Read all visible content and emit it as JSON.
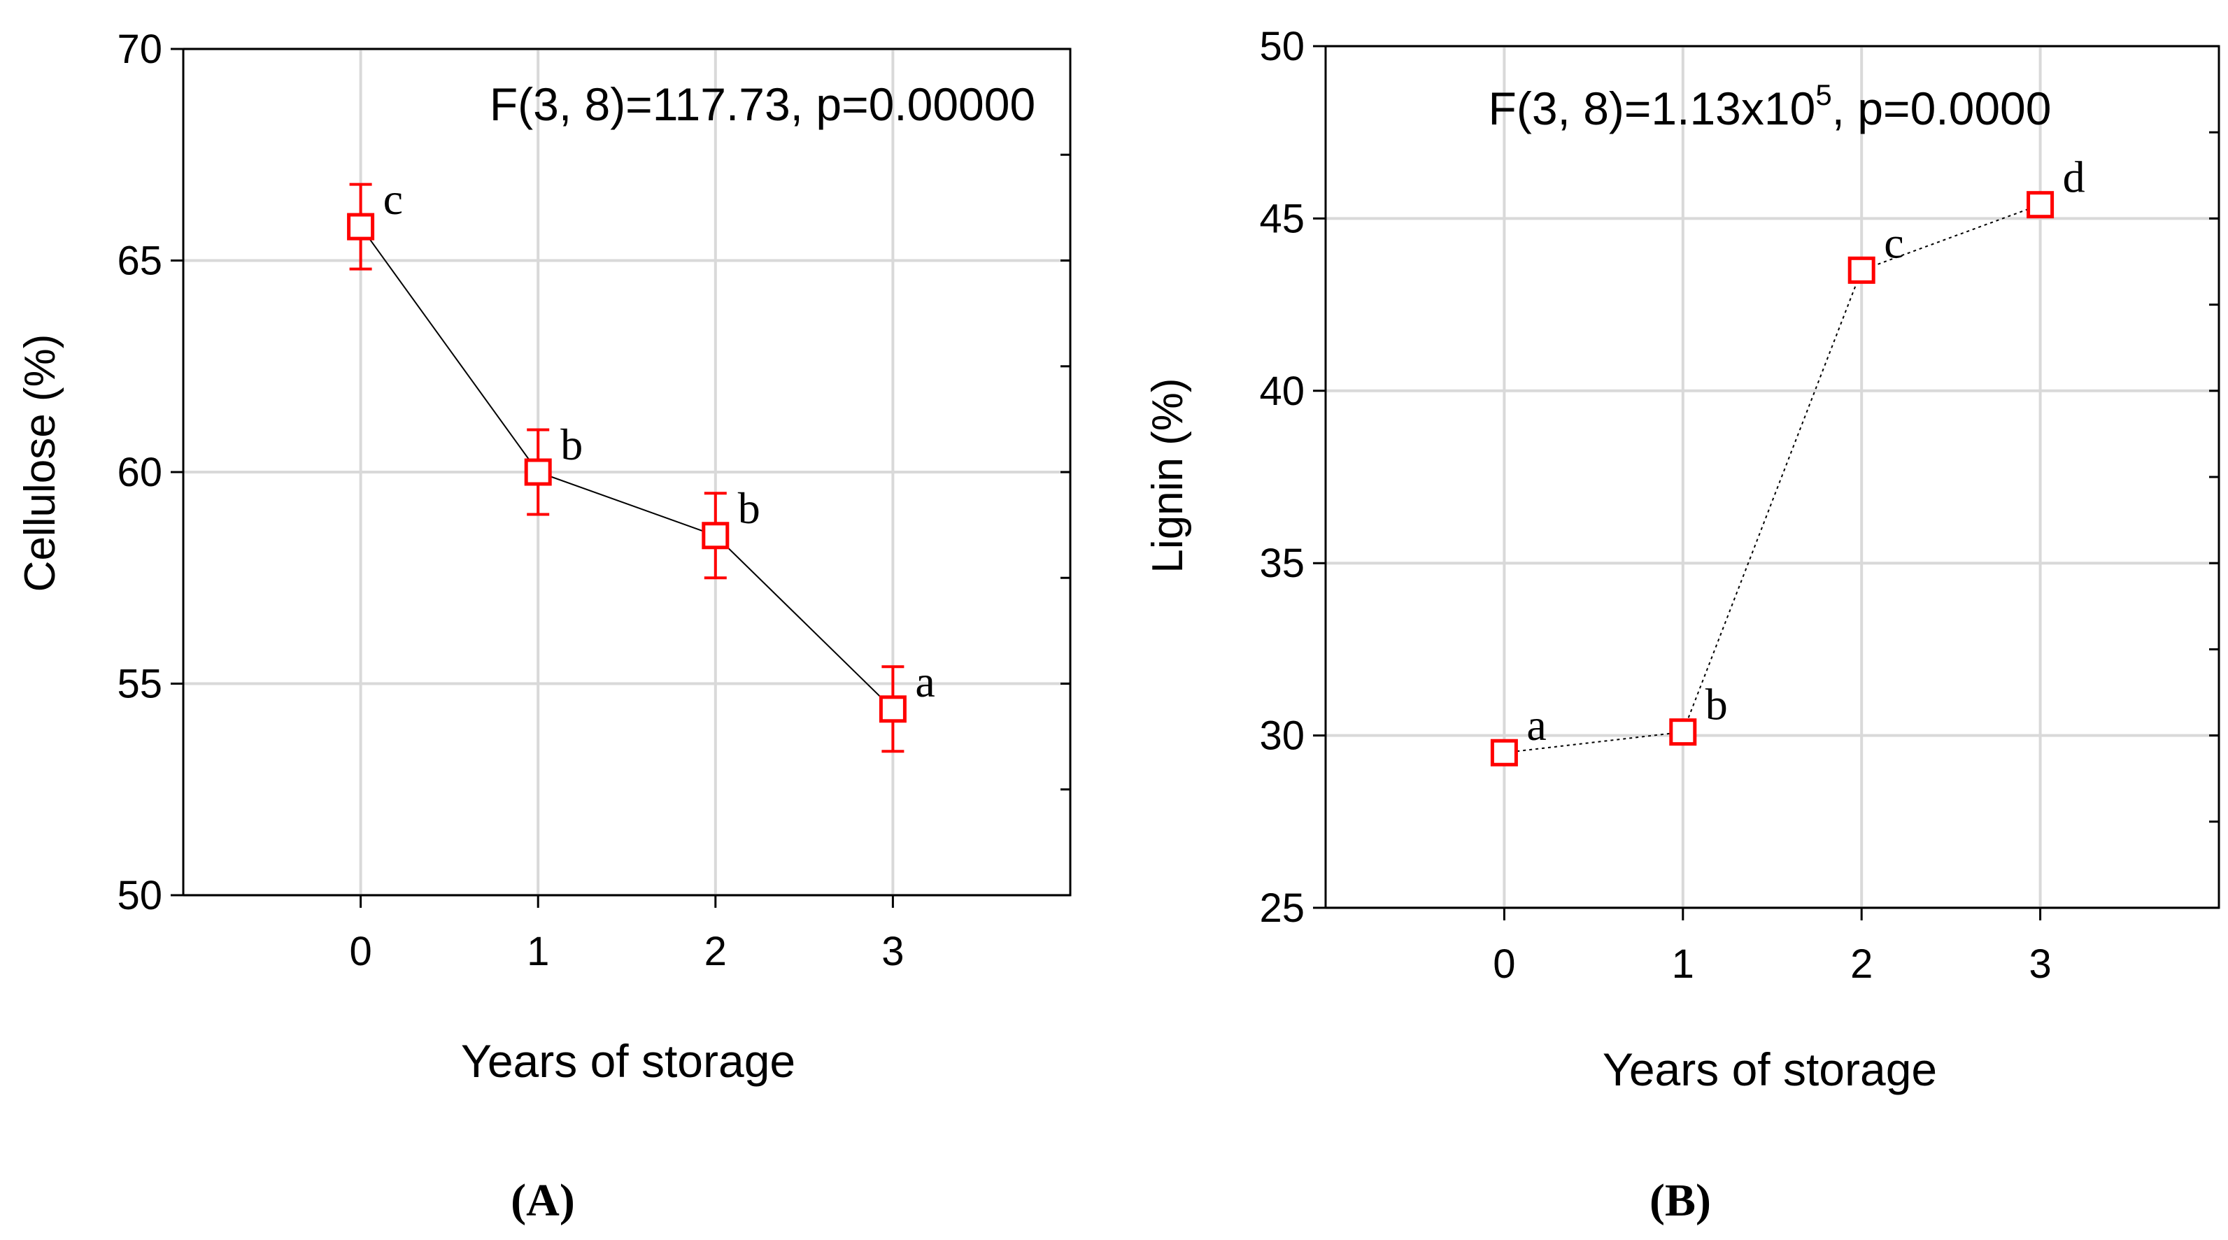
{
  "figure": {
    "panels": [
      {
        "label_letter": "A"
      },
      {
        "label_letter": "B"
      }
    ]
  },
  "chart_data": [
    {
      "type": "line",
      "panel": "A",
      "title": "",
      "annotation": "F(3, 8)=117.73, p=0.00000",
      "xlabel": "Years of storage",
      "ylabel": "Cellulose (%)",
      "categories": [
        "0",
        "1",
        "2",
        "3"
      ],
      "x": [
        0,
        1,
        2,
        3
      ],
      "xlim": [
        -1,
        4
      ],
      "ylim": [
        50,
        70
      ],
      "y_ticks": [
        50,
        55,
        60,
        65,
        70
      ],
      "grid": true,
      "line_style": "solid",
      "series": [
        {
          "name": "Cellulose",
          "values": [
            65.8,
            60.0,
            58.5,
            54.4
          ],
          "error_low": [
            64.8,
            59.0,
            57.5,
            53.4
          ],
          "error_high": [
            66.8,
            61.0,
            59.5,
            55.4
          ],
          "group_letters": [
            "c",
            "b",
            "b",
            "a"
          ]
        }
      ],
      "colors": {
        "marker": "#ff0000",
        "line": "#000000",
        "grid": "#d9d9d9"
      }
    },
    {
      "type": "line",
      "panel": "B",
      "title": "",
      "annotation": {
        "prefix": "F(3, 8)=1.13x10",
        "superscript": "5",
        "suffix": ", p=0.0000"
      },
      "xlabel": "Years of storage",
      "ylabel": "Lignin (%)",
      "categories": [
        "0",
        "1",
        "2",
        "3"
      ],
      "x": [
        0,
        1,
        2,
        3
      ],
      "xlim": [
        -1,
        4
      ],
      "ylim": [
        25,
        50
      ],
      "y_ticks": [
        25,
        30,
        35,
        40,
        45,
        50
      ],
      "grid": true,
      "line_style": "dotted",
      "series": [
        {
          "name": "Lignin",
          "values": [
            29.5,
            30.1,
            43.5,
            45.4
          ],
          "error_low": [
            29.4,
            30.0,
            43.4,
            45.3
          ],
          "error_high": [
            29.6,
            30.2,
            43.6,
            45.5
          ],
          "group_letters": [
            "a",
            "b",
            "c",
            "d"
          ]
        }
      ],
      "colors": {
        "marker": "#ff0000",
        "line": "#000000",
        "grid": "#d9d9d9"
      }
    }
  ]
}
